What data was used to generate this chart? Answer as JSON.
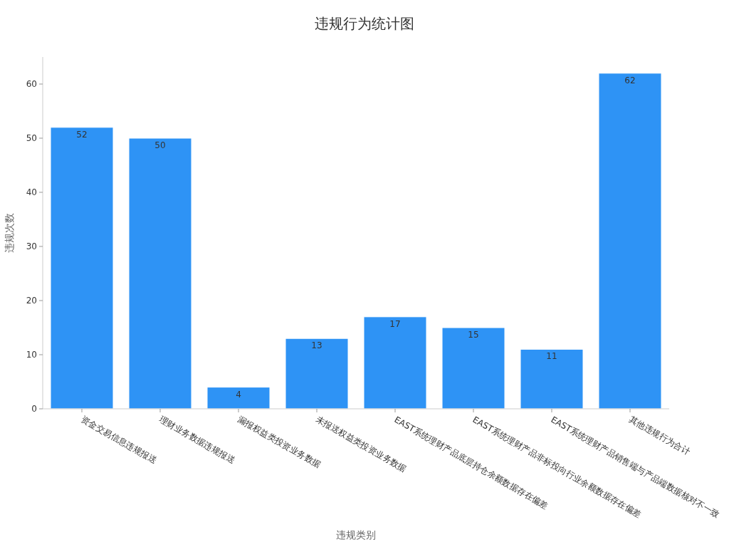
{
  "chart_data": {
    "type": "bar",
    "title": "违规行为统计图",
    "xlabel": "违规类别",
    "ylabel": "违规次数",
    "categories": [
      "资金交易信息违规报送",
      "理财业务数据违规报送",
      "漏报权益类投资业务数据",
      "未报送权益类投资业务数据",
      "EAST系统理财产品底层持仓余额数据存在偏差",
      "EAST系统理财产品非标投向行业余额数据存在偏差",
      "EAST系统理财产品销售端与产品端数据核对不一致",
      "其他违规行为合计"
    ],
    "values": [
      52,
      50,
      4,
      13,
      17,
      15,
      11,
      62
    ],
    "color": "#2e93f5",
    "ylim": [
      0,
      65
    ],
    "yticks": [
      0,
      10,
      20,
      30,
      40,
      50,
      60
    ],
    "data_labels": true,
    "grid": false
  }
}
